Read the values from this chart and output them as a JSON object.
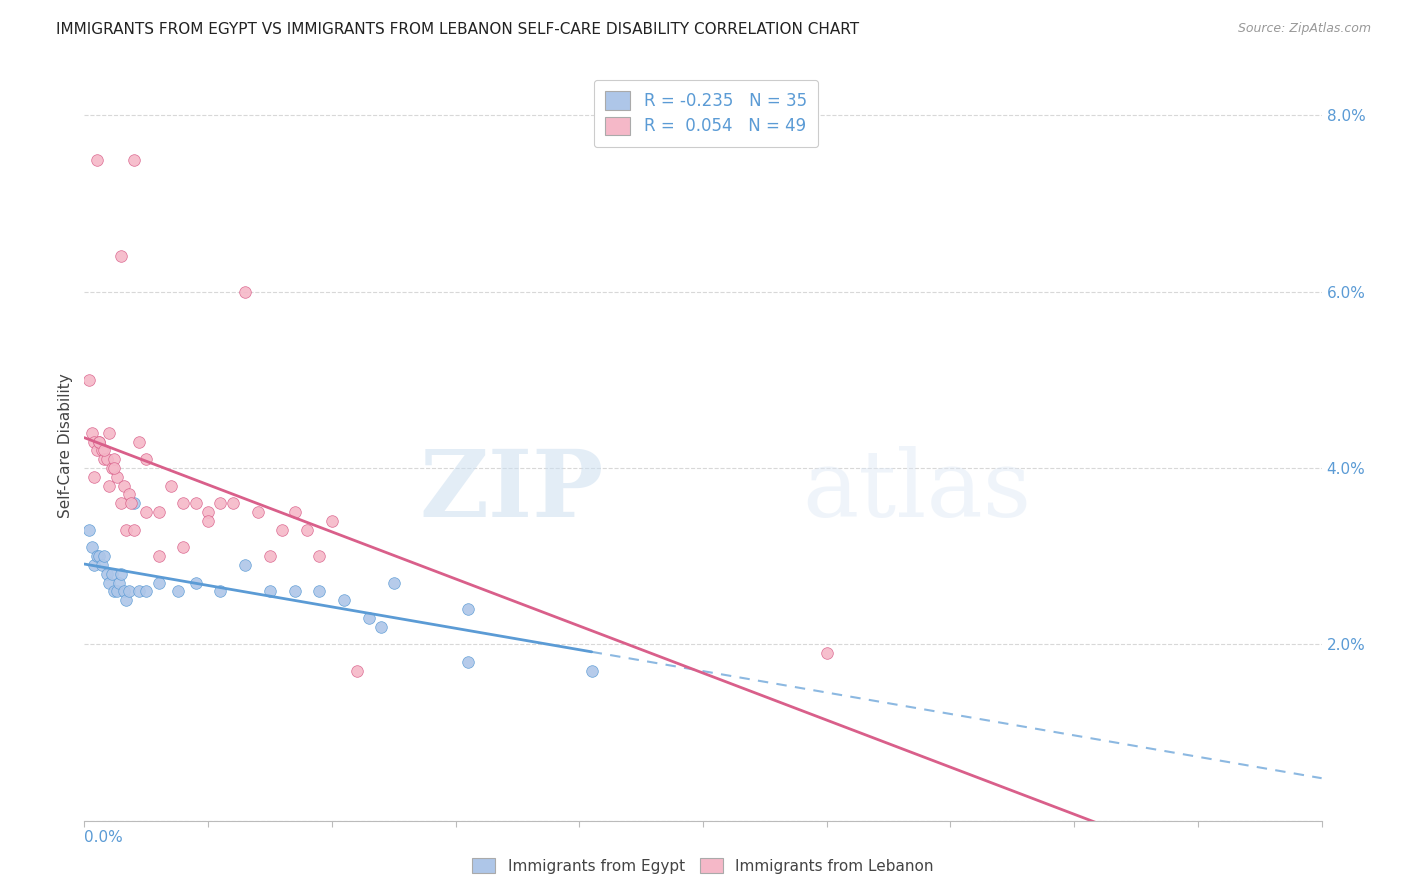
{
  "title": "IMMIGRANTS FROM EGYPT VS IMMIGRANTS FROM LEBANON SELF-CARE DISABILITY CORRELATION CHART",
  "source": "Source: ZipAtlas.com",
  "ylabel": "Self-Care Disability",
  "xlim": [
    0.0,
    0.5
  ],
  "ylim": [
    0.0,
    0.085
  ],
  "egypt_R": "-0.235",
  "egypt_N": "35",
  "lebanon_R": "0.054",
  "lebanon_N": "49",
  "egypt_color": "#aec6e8",
  "lebanon_color": "#f5b8c8",
  "egypt_line_color": "#5b9bd5",
  "lebanon_line_color": "#d95f8a",
  "egypt_scatter": [
    [
      0.002,
      0.033
    ],
    [
      0.003,
      0.031
    ],
    [
      0.004,
      0.029
    ],
    [
      0.005,
      0.03
    ],
    [
      0.006,
      0.03
    ],
    [
      0.007,
      0.029
    ],
    [
      0.008,
      0.03
    ],
    [
      0.009,
      0.028
    ],
    [
      0.01,
      0.027
    ],
    [
      0.011,
      0.028
    ],
    [
      0.012,
      0.026
    ],
    [
      0.013,
      0.026
    ],
    [
      0.014,
      0.027
    ],
    [
      0.015,
      0.028
    ],
    [
      0.016,
      0.026
    ],
    [
      0.017,
      0.025
    ],
    [
      0.018,
      0.026
    ],
    [
      0.02,
      0.036
    ],
    [
      0.022,
      0.026
    ],
    [
      0.025,
      0.026
    ],
    [
      0.03,
      0.027
    ],
    [
      0.038,
      0.026
    ],
    [
      0.045,
      0.027
    ],
    [
      0.055,
      0.026
    ],
    [
      0.065,
      0.029
    ],
    [
      0.075,
      0.026
    ],
    [
      0.085,
      0.026
    ],
    [
      0.095,
      0.026
    ],
    [
      0.105,
      0.025
    ],
    [
      0.115,
      0.023
    ],
    [
      0.125,
      0.027
    ],
    [
      0.155,
      0.024
    ],
    [
      0.155,
      0.018
    ],
    [
      0.205,
      0.017
    ],
    [
      0.12,
      0.022
    ]
  ],
  "lebanon_scatter": [
    [
      0.002,
      0.05
    ],
    [
      0.003,
      0.044
    ],
    [
      0.004,
      0.043
    ],
    [
      0.005,
      0.042
    ],
    [
      0.005,
      0.075
    ],
    [
      0.006,
      0.043
    ],
    [
      0.007,
      0.042
    ],
    [
      0.008,
      0.041
    ],
    [
      0.009,
      0.041
    ],
    [
      0.01,
      0.038
    ],
    [
      0.01,
      0.044
    ],
    [
      0.011,
      0.04
    ],
    [
      0.012,
      0.041
    ],
    [
      0.013,
      0.039
    ],
    [
      0.015,
      0.064
    ],
    [
      0.015,
      0.036
    ],
    [
      0.016,
      0.038
    ],
    [
      0.017,
      0.033
    ],
    [
      0.018,
      0.037
    ],
    [
      0.019,
      0.036
    ],
    [
      0.02,
      0.075
    ],
    [
      0.02,
      0.033
    ],
    [
      0.022,
      0.043
    ],
    [
      0.025,
      0.035
    ],
    [
      0.025,
      0.041
    ],
    [
      0.03,
      0.035
    ],
    [
      0.035,
      0.038
    ],
    [
      0.04,
      0.036
    ],
    [
      0.045,
      0.036
    ],
    [
      0.05,
      0.035
    ],
    [
      0.05,
      0.034
    ],
    [
      0.055,
      0.036
    ],
    [
      0.06,
      0.036
    ],
    [
      0.065,
      0.06
    ],
    [
      0.07,
      0.035
    ],
    [
      0.075,
      0.03
    ],
    [
      0.08,
      0.033
    ],
    [
      0.085,
      0.035
    ],
    [
      0.09,
      0.033
    ],
    [
      0.095,
      0.03
    ],
    [
      0.1,
      0.034
    ],
    [
      0.03,
      0.03
    ],
    [
      0.04,
      0.031
    ],
    [
      0.11,
      0.017
    ],
    [
      0.004,
      0.039
    ],
    [
      0.006,
      0.043
    ],
    [
      0.008,
      0.042
    ],
    [
      0.012,
      0.04
    ],
    [
      0.3,
      0.019
    ]
  ],
  "watermark_zip": "ZIP",
  "watermark_atlas": "atlas",
  "background_color": "#ffffff",
  "grid_color": "#d8d8d8",
  "legend_egypt_label": "Immigrants from Egypt",
  "legend_lebanon_label": "Immigrants from Lebanon"
}
